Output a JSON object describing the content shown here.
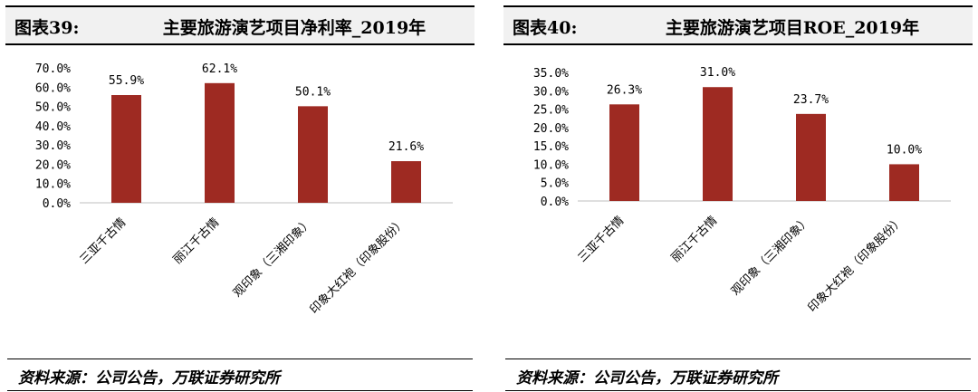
{
  "panels": [
    {
      "figure_label": "图表39:",
      "title": "主要旅游演艺项目净利率_2019年",
      "source": "资料来源：公司公告，万联证券研究所"
    },
    {
      "figure_label": "图表40:",
      "title": "主要旅游演艺项目ROE_2019年",
      "source": "资料来源：公司公告，万联证券研究所"
    }
  ],
  "chart_data": [
    {
      "type": "bar",
      "title": "主要旅游演艺项目净利率_2019年",
      "categories": [
        "三亚千古情",
        "丽江千古情",
        "观印象（三湘印象）",
        "印象大红袍（印象股份）"
      ],
      "values": [
        55.9,
        62.1,
        50.1,
        21.6
      ],
      "data_labels": [
        "55.9%",
        "62.1%",
        "50.1%",
        "21.6%"
      ],
      "yticks": [
        "0.0%",
        "10.0%",
        "20.0%",
        "30.0%",
        "40.0%",
        "50.0%",
        "60.0%",
        "70.0%"
      ],
      "ylim": [
        0,
        70
      ],
      "ytick_step": 10,
      "color": "#9e2a22",
      "grid": false,
      "xlabel": "",
      "ylabel": ""
    },
    {
      "type": "bar",
      "title": "主要旅游演艺项目ROE_2019年",
      "categories": [
        "三亚千古情",
        "丽江千古情",
        "观印象（三湘印象）",
        "印象大红袍（印象股份）"
      ],
      "values": [
        26.3,
        31.0,
        23.7,
        10.0
      ],
      "data_labels": [
        "26.3%",
        "31.0%",
        "23.7%",
        "10.0%"
      ],
      "yticks": [
        "0.0%",
        "5.0%",
        "10.0%",
        "15.0%",
        "20.0%",
        "25.0%",
        "30.0%",
        "35.0%"
      ],
      "ylim": [
        0,
        35
      ],
      "ytick_step": 5,
      "color": "#9e2a22",
      "grid": false,
      "xlabel": "",
      "ylabel": ""
    }
  ]
}
